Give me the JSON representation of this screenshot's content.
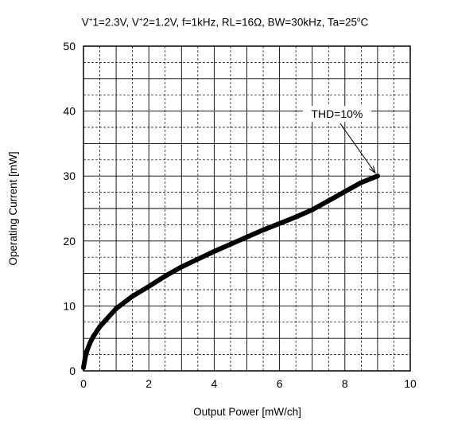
{
  "chart_data": {
    "type": "line",
    "title": {
      "v1_label": "V",
      "v1_sup": "+",
      "v1_rest": "1=2.3V, ",
      "v2_label": "V",
      "v2_sup": "+",
      "v2_rest": "2=1.2V, f=1kHz, RL=16Ω, BW=30kHz, Ta=25",
      "deg_sup": "o",
      "unit": "C"
    },
    "xlabel": "Output Power [mW/ch]",
    "ylabel": "Operating Current [mW]",
    "xlim": [
      0,
      10
    ],
    "ylim": [
      0,
      50
    ],
    "x_ticks": [
      "0",
      "2",
      "4",
      "6",
      "8",
      "10"
    ],
    "y_ticks": [
      "0",
      "10",
      "20",
      "30",
      "40",
      "50"
    ],
    "grid": true,
    "minor_grid": true,
    "series": [
      {
        "x": [
          0,
          0.05,
          0.1,
          0.2,
          0.3,
          0.5,
          0.75,
          1,
          1.5,
          2,
          2.5,
          3,
          3.5,
          4,
          4.5,
          5,
          5.5,
          6,
          6.5,
          7,
          7.5,
          8,
          8.5,
          9
        ],
        "y": [
          0.5,
          2,
          3,
          4.3,
          5.3,
          6.8,
          8.2,
          9.6,
          11.5,
          13,
          14.6,
          16,
          17.2,
          18.4,
          19.5,
          20.6,
          21.7,
          22.7,
          23.7,
          24.8,
          26.2,
          27.6,
          29,
          30
        ]
      }
    ],
    "annotation": {
      "text": "THD=10%",
      "target_x": 9,
      "target_y": 30
    }
  }
}
